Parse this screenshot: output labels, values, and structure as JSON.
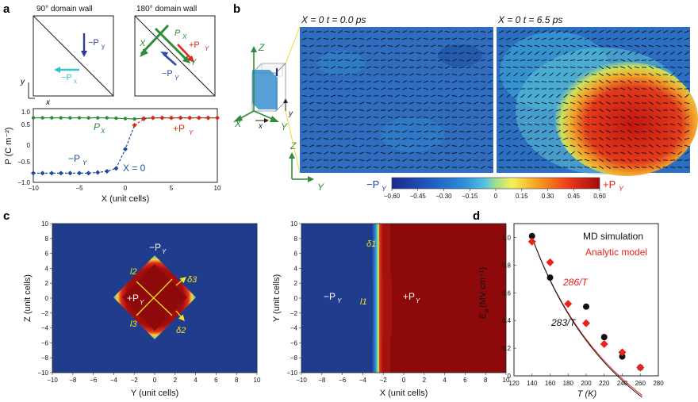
{
  "figure": {
    "panel_letters": [
      "a",
      "b",
      "c",
      "d"
    ],
    "panel_a": {
      "titles": [
        "90° domain wall",
        "180° domain wall"
      ],
      "left_schematic": {
        "labels": [
          "−P",
          "y",
          "−P",
          "x"
        ]
      },
      "right_schematic": {
        "labels": [
          "X",
          "P",
          "X",
          "+P",
          "Y",
          "Y",
          "−P",
          "Y"
        ]
      },
      "axis_labels": [
        "y",
        "x"
      ]
    },
    "panel_b": {
      "titles": [
        "X = 0   t = 0.0 ps",
        "X = 0   t = 6.5 ps"
      ],
      "cube_labels": [
        "Z",
        "X",
        "x",
        "Y",
        "y",
        "Z",
        "Y"
      ],
      "colorbar": {
        "left_label": "−P",
        "left_sub": "Y",
        "right_label": "+P",
        "right_sub": "Y",
        "ticks": [
          "−0.60",
          "−0.45",
          "−0.30",
          "−0.15",
          "0",
          "0.15",
          "0.30",
          "0.45",
          "0.60"
        ],
        "colors": [
          "#1a2a8f",
          "#1f5fbf",
          "#2e8fd8",
          "#58c2e0",
          "#f7f05a",
          "#f5a020",
          "#ee3a1a",
          "#a30a0a"
        ]
      }
    },
    "panel_c": {
      "left": {
        "xlabel": "Y (unit cells)",
        "ylabel": "Z (unit cells)",
        "xticks": [
          "−10",
          "−8",
          "−6",
          "−4",
          "−2",
          "0",
          "2",
          "4",
          "6",
          "8",
          "10"
        ],
        "yticks": [
          "10",
          "8",
          "6",
          "4",
          "2",
          "0",
          "−2",
          "−4",
          "−6",
          "−8",
          "−10"
        ],
        "outside_label": "−P",
        "outside_sub": "Y",
        "inside_label": "+P",
        "inside_sub": "Y",
        "annotations": [
          "l2",
          "l3",
          "δ3",
          "δ2"
        ]
      },
      "right": {
        "xlabel": "X (unit cells)",
        "ylabel": "Y (unit cells)",
        "xticks": [
          "−10",
          "−8",
          "−6",
          "−4",
          "−2",
          "0",
          "2",
          "4",
          "6",
          "8",
          "10"
        ],
        "yticks": [
          "10",
          "8",
          "6",
          "4",
          "2",
          "0",
          "−2",
          "−4",
          "−6",
          "−8",
          "−10"
        ],
        "left_region": "−P",
        "left_sub": "Y",
        "right_region": "+P",
        "right_sub": "Y",
        "annotations": [
          "δ1",
          "l1"
        ]
      }
    }
  },
  "chart_data": [
    {
      "type": "line",
      "panel": "a",
      "xlabel": "X (unit cells)",
      "ylabel": "P (C m⁻²)",
      "xlim": [
        -10,
        10
      ],
      "ylim": [
        -1.0,
        1.0
      ],
      "xticks": [
        "−10",
        "−5",
        "0",
        "5",
        "10"
      ],
      "yticks": [
        "1.0",
        "0.5",
        "0",
        "−0.5",
        "−1.0"
      ],
      "series": [
        {
          "name": "PX",
          "color": "#2e8b3a",
          "x": [
            -10,
            -9,
            -8,
            -7,
            -6,
            -5,
            -4,
            -3,
            -2,
            -1,
            0,
            1,
            2,
            3,
            4,
            5,
            6,
            7,
            8,
            9,
            10
          ],
          "y": [
            0.75,
            0.75,
            0.75,
            0.75,
            0.75,
            0.75,
            0.75,
            0.75,
            0.75,
            0.74,
            0.73,
            0.72,
            0.74,
            0.75,
            0.75,
            0.75,
            0.75,
            0.75,
            0.75,
            0.75,
            0.75
          ]
        },
        {
          "name": "PY",
          "color_neg": "#1f4aa0",
          "color_pos": "#d9271e",
          "x": [
            -10,
            -9,
            -8,
            -7,
            -6,
            -5,
            -4,
            -3,
            -2,
            -1,
            0,
            1,
            2,
            3,
            4,
            5,
            6,
            7,
            8,
            9,
            10
          ],
          "y": [
            -0.75,
            -0.75,
            -0.75,
            -0.75,
            -0.75,
            -0.75,
            -0.75,
            -0.73,
            -0.7,
            -0.62,
            -0.1,
            0.55,
            0.72,
            0.75,
            0.75,
            0.75,
            0.75,
            0.75,
            0.75,
            0.75,
            0.75
          ]
        }
      ],
      "annotations": [
        "P",
        "X",
        "+P",
        "Y",
        "−P",
        "Y",
        "X = 0"
      ]
    },
    {
      "type": "scatter",
      "panel": "d",
      "xlabel": "T (K)",
      "ylabel": "E",
      "ylabel_sub": "a",
      "ylabel_unit": "(MV cm⁻¹)",
      "xlim": [
        120,
        280
      ],
      "ylim": [
        0,
        1.1
      ],
      "xticks": [
        "120",
        "140",
        "160",
        "180",
        "200",
        "220",
        "240",
        "260",
        "280"
      ],
      "yticks": [
        "1.0",
        "0.8",
        "0.6",
        "0.4",
        "0.2",
        "0"
      ],
      "series": [
        {
          "name": "MD simulation",
          "color": "#111111",
          "x": [
            140,
            160,
            200,
            220,
            240,
            260
          ],
          "y": [
            1.01,
            0.71,
            0.5,
            0.28,
            0.14,
            0.06
          ]
        },
        {
          "name": "Analytic model",
          "color": "#e8231b",
          "x": [
            140,
            160,
            180,
            200,
            220,
            240,
            260
          ],
          "y": [
            0.97,
            0.82,
            0.52,
            0.38,
            0.23,
            0.17,
            0.06
          ]
        }
      ],
      "fits": [
        {
          "label": "286/T",
          "color": "#e8231b"
        },
        {
          "label": "283/T",
          "color": "#111111"
        }
      ],
      "legend": [
        "MD simulation",
        "Analytic model"
      ]
    }
  ]
}
